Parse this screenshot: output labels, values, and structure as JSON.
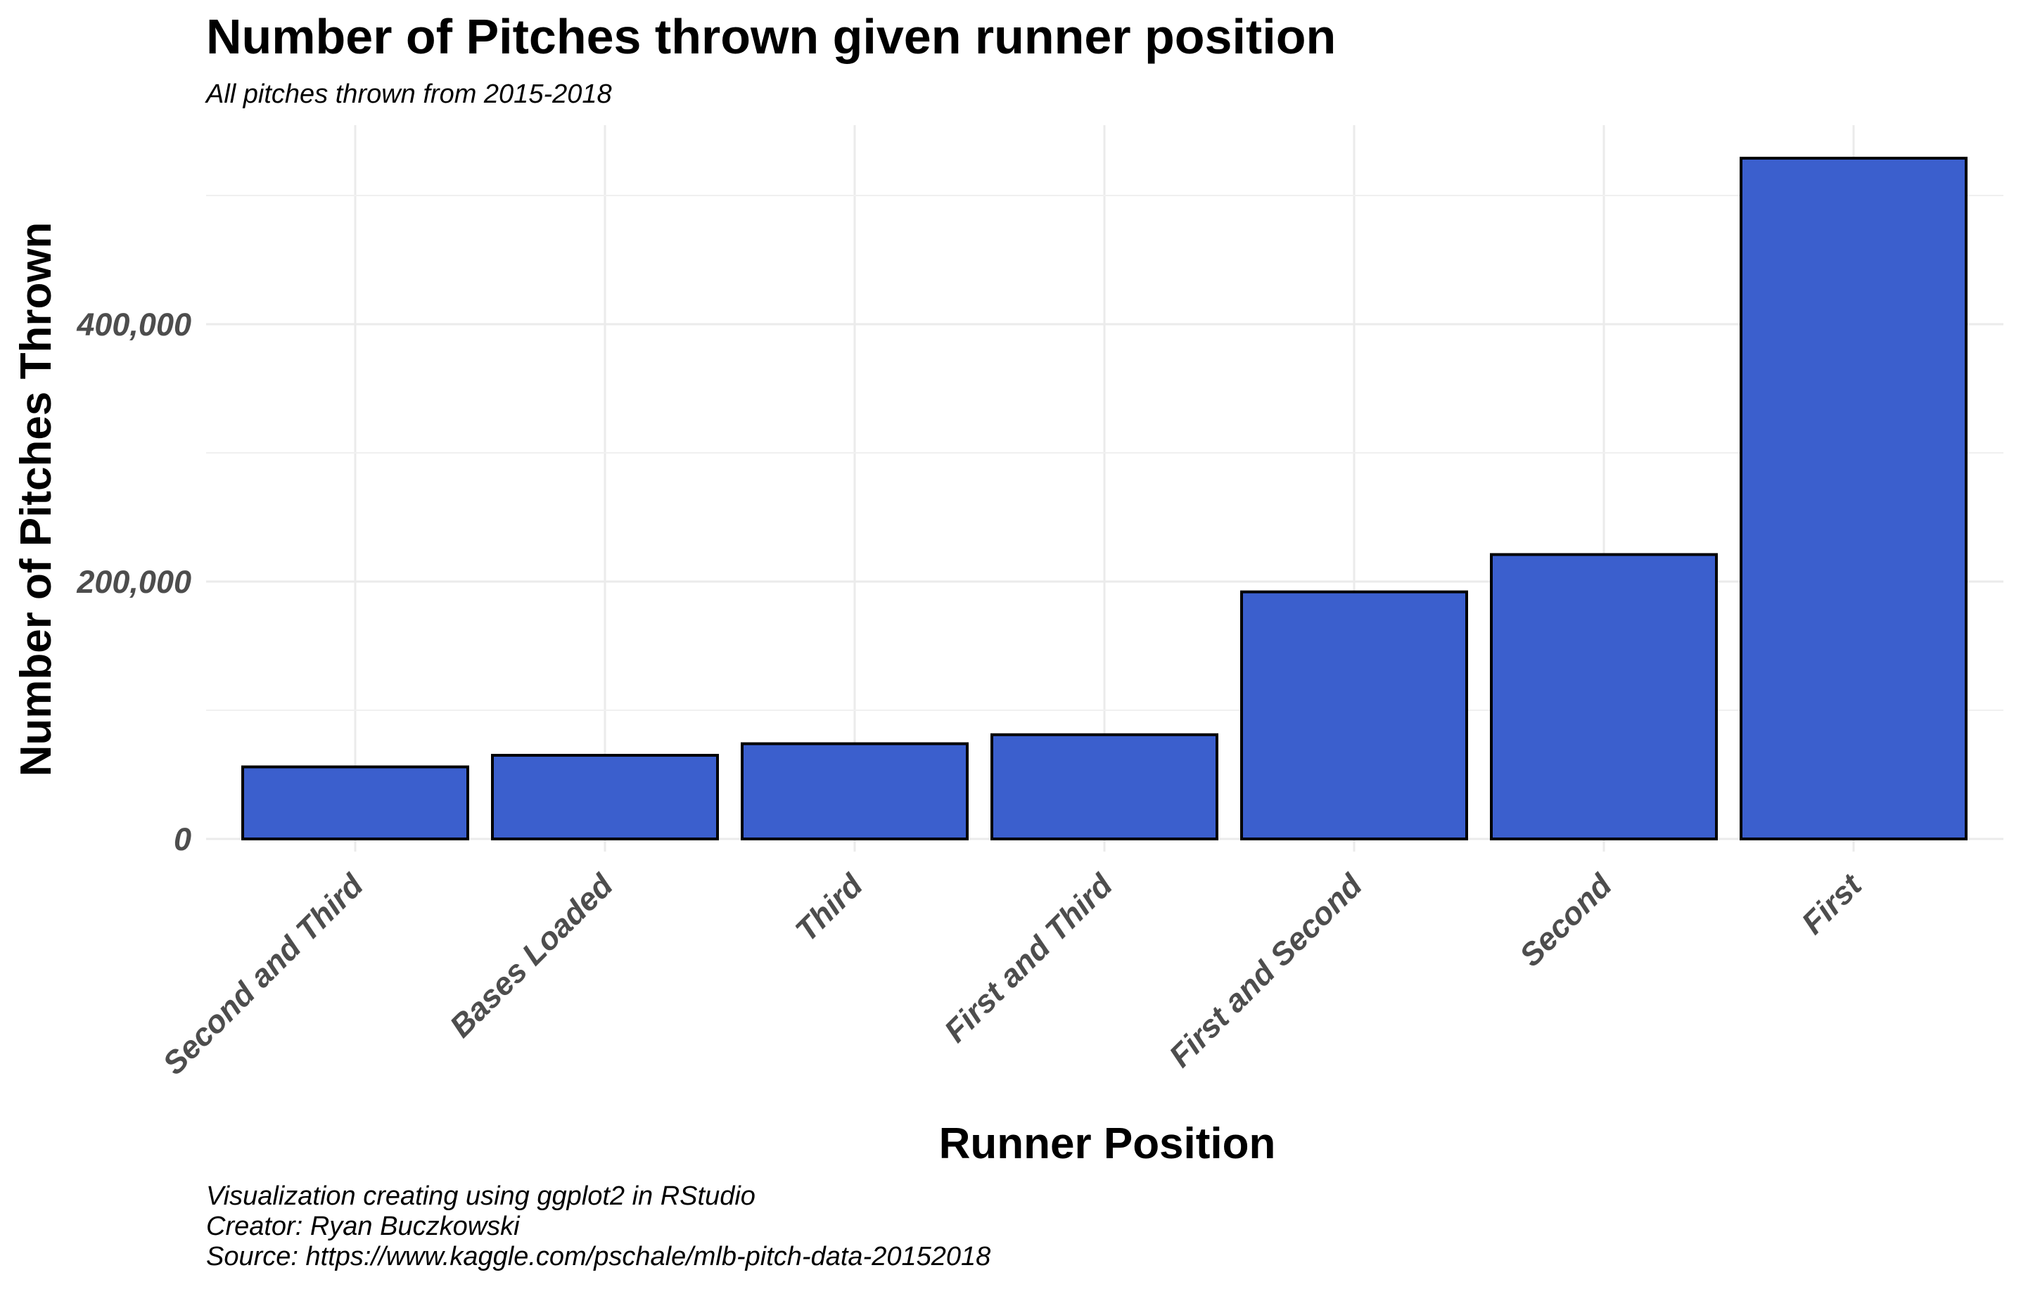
{
  "chart_data": {
    "type": "bar",
    "title": "Number of Pitches thrown given runner position",
    "subtitle": "All pitches thrown from 2015-2018",
    "xlabel": "Runner Position",
    "ylabel": "Number of Pitches Thrown",
    "categories": [
      "Second and Third",
      "Bases Loaded",
      "Third",
      "First and Third",
      "First and Second",
      "Second",
      "First"
    ],
    "values": [
      56000,
      65000,
      74000,
      81000,
      192000,
      221000,
      529000
    ],
    "ylim": [
      0,
      560000
    ],
    "y_ticks": [
      {
        "value": 0,
        "label": "0"
      },
      {
        "value": 200000,
        "label": "200,000"
      },
      {
        "value": 400000,
        "label": "400,000"
      }
    ],
    "y_minor_gridlines": [
      100000,
      300000,
      500000
    ],
    "grid": true,
    "legend": "none",
    "bar_fill": "#3b5fcd",
    "bar_outline": "#000000",
    "caption": [
      "Visualization creating using ggplot2 in RStudio",
      "Creator: Ryan Buczkowski",
      "Source: https://www.kaggle.com/pschale/mlb-pitch-data-20152018"
    ]
  }
}
